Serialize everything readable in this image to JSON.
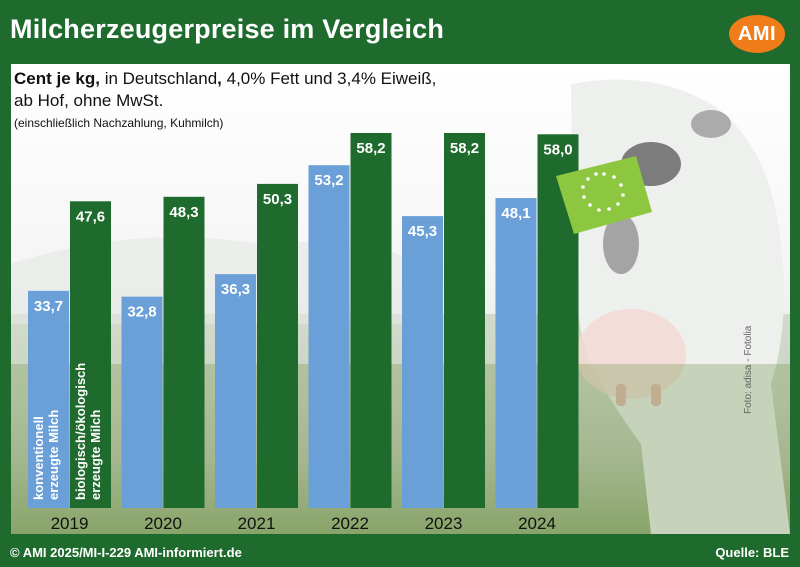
{
  "header": {
    "title": "Milcherzeugerpreise im Vergleich",
    "logo": "AMI"
  },
  "subtitle": {
    "bold": "Cent je kg,",
    "rest1": " in Deutschland",
    "bold2": ",",
    "rest2": " 4,0% Fett und 3,4% Eiweiß,",
    "line2": "ab Hof, ohne MwSt.",
    "note": "(einschließlich Nachzahlung, Kuhmilch)"
  },
  "chart_data": {
    "type": "bar",
    "categories": [
      "2019",
      "2020",
      "2021",
      "2022",
      "2023",
      "2024"
    ],
    "series": [
      {
        "name": "konventionell erzeugte Milch",
        "values": [
          33.7,
          32.8,
          36.3,
          53.2,
          45.3,
          48.1
        ]
      },
      {
        "name": "biologisch/ökologisch erzeugte Milch",
        "values": [
          47.6,
          48.3,
          50.3,
          58.2,
          58.2,
          58.0
        ]
      }
    ],
    "value_labels": {
      "conventional": [
        "33,7",
        "32,8",
        "36,3",
        "53,2",
        "45,3",
        "48,1"
      ],
      "organic": [
        "47,6",
        "48,3",
        "50,3",
        "58,2",
        "58,2",
        "58,0"
      ]
    },
    "legend_lines": {
      "conventional": [
        "konventionell",
        "erzeugte Milch"
      ],
      "organic": [
        "biologisch/ökologisch",
        "erzeugte Milch"
      ]
    },
    "ylim": [
      0,
      58.2
    ],
    "colors": {
      "conventional": "#6a9fd8",
      "organic": "#1f6b2e"
    },
    "grid": false
  },
  "credit": "Foto: adisa - Fotolia",
  "footer": {
    "left": "© AMI 2025/MI-I-229 AMI-informiert.de",
    "right": "Quelle: BLE"
  },
  "icons": {
    "logo": "ami-logo",
    "organic_label": "eu-organic-leaf-icon"
  }
}
